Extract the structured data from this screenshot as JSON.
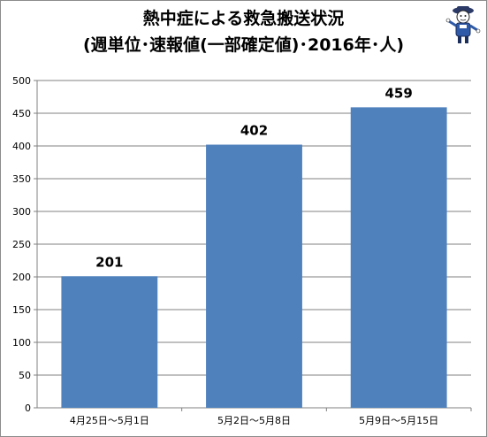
{
  "chart_data": {
    "type": "bar",
    "title_lines": [
      "熱中症による救急搬送状況",
      "(週単位･速報値(一部確定値)･2016年･人)"
    ],
    "categories": [
      "4月25日～5月1日",
      "5月2日～5月8日",
      "5月9日～5月15日"
    ],
    "values": [
      201,
      402,
      459
    ],
    "ylim": [
      0,
      500
    ],
    "yticks": [
      0,
      50,
      100,
      150,
      200,
      250,
      300,
      350,
      400,
      450,
      500
    ],
    "grid": true,
    "legend": "none",
    "bar_color": "#4f81bd",
    "grid_color": "#808080"
  },
  "decor": {
    "mascot_icon": "mascot-character-icon"
  }
}
